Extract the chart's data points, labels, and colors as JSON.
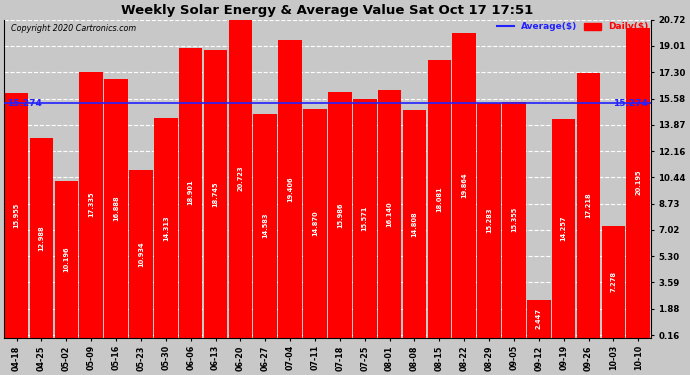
{
  "title": "Weekly Solar Energy & Average Value Sat Oct 17 17:51",
  "copyright": "Copyright 2020 Cartronics.com",
  "categories": [
    "04-18",
    "04-25",
    "05-02",
    "05-09",
    "05-16",
    "05-23",
    "05-30",
    "06-06",
    "06-13",
    "06-20",
    "06-27",
    "07-04",
    "07-11",
    "07-18",
    "07-25",
    "08-01",
    "08-08",
    "08-15",
    "08-22",
    "08-29",
    "09-05",
    "09-12",
    "09-19",
    "09-26",
    "10-03",
    "10-10"
  ],
  "values": [
    15.955,
    12.988,
    10.196,
    17.335,
    16.888,
    10.934,
    14.313,
    18.901,
    18.745,
    20.723,
    14.583,
    19.406,
    14.87,
    15.986,
    15.571,
    16.14,
    14.808,
    18.081,
    19.864,
    15.283,
    15.355,
    2.447,
    14.257,
    17.218,
    7.278,
    20.195
  ],
  "average": 15.274,
  "bar_color": "#ff0000",
  "average_color": "#2222ff",
  "yticks": [
    0.16,
    1.88,
    3.59,
    5.3,
    7.02,
    8.73,
    10.44,
    12.16,
    13.87,
    15.58,
    17.3,
    19.01,
    20.72
  ],
  "ylim_min": 0.0,
  "ylim_max": 20.72,
  "background_color": "#c8c8c8",
  "plot_bg_color": "#c8c8c8",
  "legend_avg_label": "Average($)",
  "legend_daily_label": "Daily($)",
  "avg_label": "15.274",
  "figwidth": 6.9,
  "figheight": 3.75,
  "dpi": 100
}
